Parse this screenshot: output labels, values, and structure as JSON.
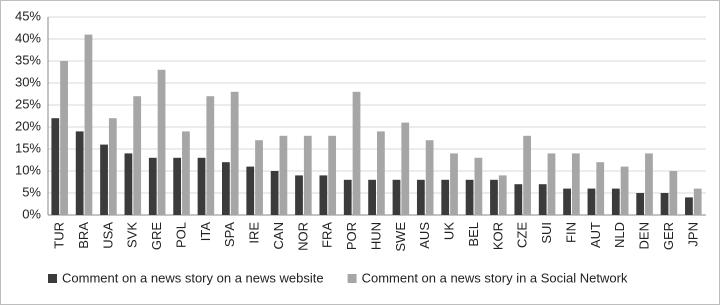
{
  "chart_data": {
    "type": "bar",
    "categories": [
      "TUR",
      "BRA",
      "USA",
      "SVK",
      "GRE",
      "POL",
      "ITA",
      "SPA",
      "IRE",
      "CAN",
      "NOR",
      "FRA",
      "POR",
      "HUN",
      "SWE",
      "AUS",
      "UK",
      "BEL",
      "KOR",
      "CZE",
      "SUI",
      "FIN",
      "AUT",
      "NLD",
      "DEN",
      "GER",
      "JPN"
    ],
    "series": [
      {
        "name": "Comment on a news story on a news website",
        "color": "#3b3b3b",
        "values": [
          22,
          19,
          16,
          14,
          13,
          13,
          13,
          12,
          11,
          10,
          9,
          9,
          8,
          8,
          8,
          8,
          8,
          8,
          8,
          7,
          7,
          6,
          6,
          6,
          5,
          5,
          4
        ]
      },
      {
        "name": "Comment on a news story in a Social Network",
        "color": "#a6a6a6",
        "values": [
          35,
          41,
          22,
          27,
          33,
          19,
          27,
          28,
          17,
          18,
          18,
          18,
          28,
          19,
          21,
          17,
          14,
          13,
          9,
          18,
          14,
          14,
          12,
          11,
          14,
          10,
          6
        ]
      }
    ],
    "ylim": [
      0,
      45
    ],
    "yticks": [
      {
        "value": 0,
        "label": "0%"
      },
      {
        "value": 5,
        "label": "5%"
      },
      {
        "value": 10,
        "label": "10%"
      },
      {
        "value": 15,
        "label": "15%"
      },
      {
        "value": 20,
        "label": "20%"
      },
      {
        "value": 25,
        "label": "25%"
      },
      {
        "value": 30,
        "label": "30%"
      },
      {
        "value": 35,
        "label": "35%"
      },
      {
        "value": 40,
        "label": "40%"
      },
      {
        "value": 45,
        "label": "45%"
      }
    ],
    "grid": true,
    "legend": "bottom"
  }
}
